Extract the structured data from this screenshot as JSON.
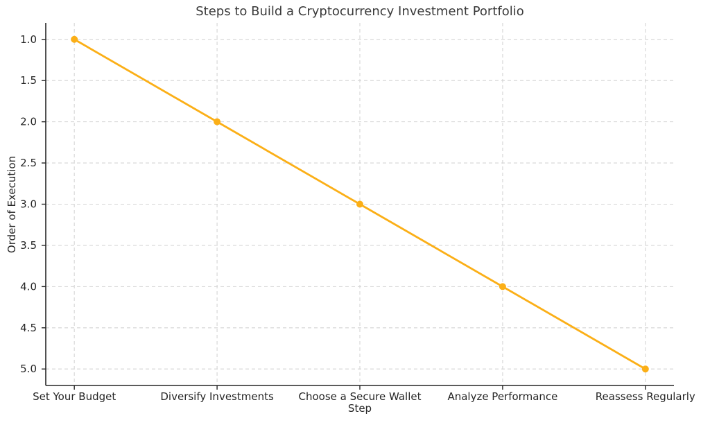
{
  "chart_data": {
    "type": "line",
    "title": "Steps to Build a Cryptocurrency Investment Portfolio",
    "xlabel": "Step",
    "ylabel": "Order of Execution",
    "categories": [
      "Set Your Budget",
      "Diversify Investments",
      "Choose a Secure Wallet",
      "Analyze Performance",
      "Reassess Regularly"
    ],
    "values": [
      1.0,
      2.0,
      3.0,
      4.0,
      5.0
    ],
    "yticks": [
      1.0,
      1.5,
      2.0,
      2.5,
      3.0,
      3.5,
      4.0,
      4.5,
      5.0
    ],
    "ylim": [
      0.8,
      5.2
    ],
    "y_axis_inverted": true,
    "grid": true,
    "grid_style": "dashed",
    "legend": "none",
    "colors": {
      "line": "#FBAF17",
      "marker": "#FBAF17",
      "grid": "#d4d4d4",
      "axis": "#262626",
      "tick_text": "#262626",
      "title_text": "#3a3a3a"
    }
  }
}
